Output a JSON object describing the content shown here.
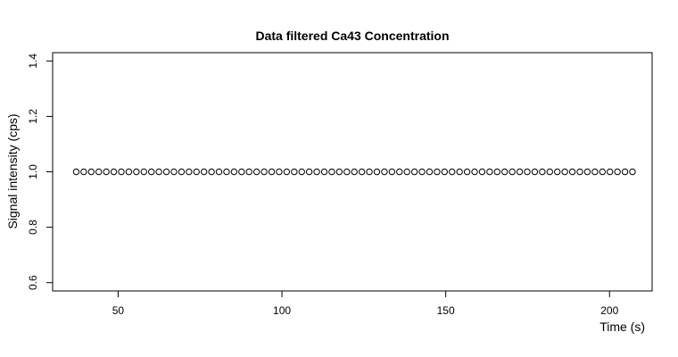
{
  "chart_data": {
    "type": "scatter",
    "title": "Data filtered Ca43 Concentration",
    "xlabel": "Time (s)",
    "ylabel": "Signal intensity (cps)",
    "xlim": [
      30,
      213
    ],
    "ylim": [
      0.57,
      1.43
    ],
    "xticks": [
      50,
      100,
      150,
      200
    ],
    "yticks": [
      0.6,
      0.8,
      1.0,
      1.2,
      1.4
    ],
    "xtick_labels": [
      "50",
      "100",
      "150",
      "200"
    ],
    "ytick_labels": [
      "0.6",
      "0.8",
      "1.0",
      "1.2",
      "1.4"
    ],
    "grid": false,
    "marker": "open-circle",
    "series": [
      {
        "x_start": 37.2,
        "x_end": 207,
        "count": 75,
        "y": 1.0
      }
    ]
  }
}
